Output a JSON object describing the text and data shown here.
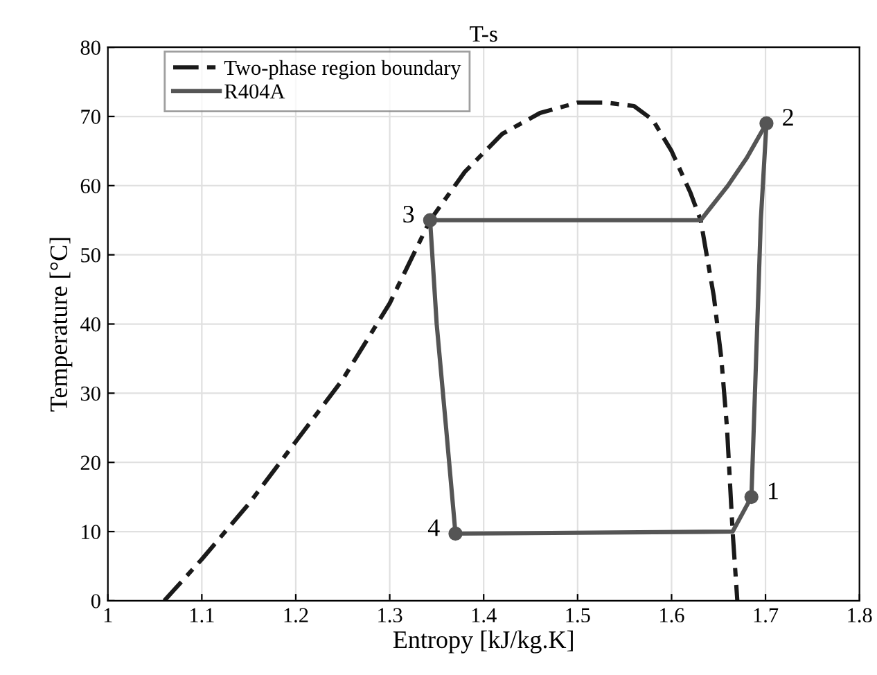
{
  "chart_data": {
    "type": "line",
    "title": "T-s",
    "xlabel": "Entropy [kJ/kg.K]",
    "ylabel": "Temperature [°C]",
    "xlim": [
      1,
      1.8
    ],
    "xticks": [
      1,
      1.1,
      1.2,
      1.3,
      1.4,
      1.5,
      1.6,
      1.7,
      1.8
    ],
    "ylim": [
      0,
      80
    ],
    "yticks": [
      0,
      10,
      20,
      30,
      40,
      50,
      60,
      70,
      80
    ],
    "grid": true,
    "legend": "top left",
    "series": [
      {
        "name": "Two-phase region boundary",
        "color": "#1a1a1a",
        "line_style": "dashed",
        "x": [
          1.06,
          1.1,
          1.15,
          1.2,
          1.25,
          1.3,
          1.343,
          1.38,
          1.42,
          1.46,
          1.5,
          1.53,
          1.56,
          1.58,
          1.6,
          1.62,
          1.631,
          1.645,
          1.653,
          1.659,
          1.665,
          1.667,
          1.67
        ],
        "values": [
          0,
          6,
          14,
          23,
          32,
          43,
          55,
          62,
          67.5,
          70.5,
          72,
          72,
          71.5,
          69.5,
          65,
          59,
          55,
          44,
          35,
          25,
          10,
          6,
          0
        ]
      },
      {
        "name": "R404A",
        "color": "#555555",
        "line_style": "solid",
        "x": [
          1.37,
          1.665,
          1.685,
          1.69,
          1.695,
          1.701
        ],
        "values": [
          9.7,
          10,
          15,
          35,
          55,
          69
        ]
      },
      {
        "color": "#555555",
        "line_style": "solid",
        "x": [
          1.343,
          1.631,
          1.66,
          1.68,
          1.701
        ],
        "values": [
          55,
          55,
          60,
          64,
          69
        ]
      },
      {
        "color": "#555555",
        "line_style": "solid",
        "x": [
          1.343,
          1.35,
          1.36,
          1.37
        ],
        "values": [
          55,
          40,
          25,
          9.7
        ]
      },
      {
        "type": "scatter",
        "color": "#555555",
        "marker": "circle",
        "x": [
          1.685,
          1.701,
          1.343,
          1.37
        ],
        "values": [
          15,
          69,
          55,
          9.7
        ]
      }
    ],
    "annotations": [
      {
        "text": "1",
        "x": 1.685,
        "y": 15
      },
      {
        "text": "2",
        "x": 1.701,
        "y": 69
      },
      {
        "text": "3",
        "x": 1.343,
        "y": 55
      },
      {
        "text": "4",
        "x": 1.37,
        "y": 9.7
      }
    ]
  }
}
